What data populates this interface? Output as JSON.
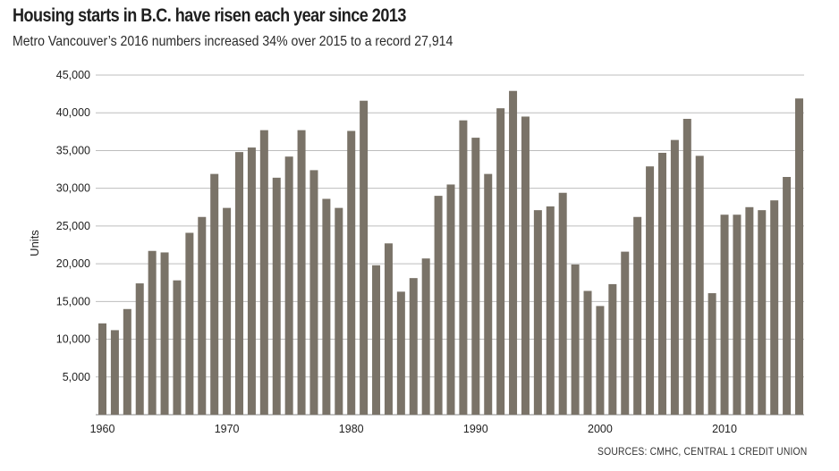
{
  "chart_data": {
    "type": "bar",
    "title": "Housing starts in B.C. have risen each year since 2013",
    "subtitle": "Metro Vancouver’s 2016 numbers increased 34% over 2015 to a record 27,914",
    "source": "SOURCES: CMHC, CENTRAL 1 CREDIT UNION",
    "ylabel": "Units",
    "xlabel": "",
    "ylim": [
      0,
      45000
    ],
    "yticks": [
      5000,
      10000,
      15000,
      20000,
      25000,
      30000,
      35000,
      40000,
      45000
    ],
    "ytick_labels": [
      "5,000",
      "10,000",
      "15,000",
      "20,000",
      "25,000",
      "30,000",
      "35,000",
      "40,000",
      "45,000"
    ],
    "xticks": [
      1960,
      1970,
      1980,
      1990,
      2000,
      2010
    ],
    "grid": true,
    "bar_color": "#7a7368",
    "categories": [
      1960,
      1961,
      1962,
      1963,
      1964,
      1965,
      1966,
      1967,
      1968,
      1969,
      1970,
      1971,
      1972,
      1973,
      1974,
      1975,
      1976,
      1977,
      1978,
      1979,
      1980,
      1981,
      1982,
      1983,
      1984,
      1985,
      1986,
      1987,
      1988,
      1989,
      1990,
      1991,
      1992,
      1993,
      1994,
      1995,
      1996,
      1997,
      1998,
      1999,
      2000,
      2001,
      2002,
      2003,
      2004,
      2005,
      2006,
      2007,
      2008,
      2009,
      2010,
      2011,
      2012,
      2013,
      2014,
      2015,
      2016
    ],
    "values": [
      12100,
      11200,
      14000,
      17400,
      21700,
      21500,
      17800,
      24100,
      26200,
      31900,
      27400,
      34800,
      35400,
      37700,
      31400,
      34200,
      37700,
      32400,
      28600,
      27400,
      37600,
      41600,
      19800,
      22700,
      16300,
      18100,
      20700,
      29000,
      30500,
      39000,
      36700,
      31900,
      40600,
      42900,
      39500,
      27100,
      27600,
      29400,
      19900,
      16400,
      14400,
      17300,
      21600,
      26200,
      32900,
      34700,
      36400,
      39200,
      34300,
      16100,
      26500,
      26500,
      27500,
      27100,
      28400,
      31500,
      41900
    ]
  }
}
